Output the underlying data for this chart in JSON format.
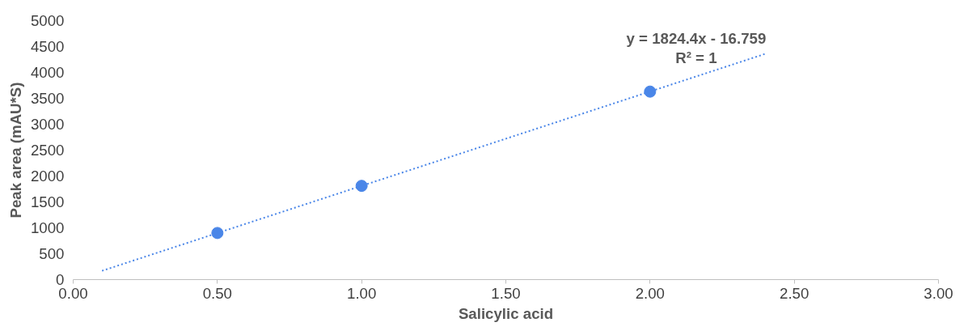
{
  "chart_data": {
    "type": "scatter",
    "xlabel": "Salicylic acid",
    "ylabel": "Peak area (mAU*S)",
    "annotations": [
      "y = 1824.4x - 16.759",
      "R² = 1"
    ],
    "xlim": [
      0,
      3
    ],
    "xticks": [
      {
        "value": 0,
        "label": "0.00"
      },
      {
        "value": 0.5,
        "label": "0.50"
      },
      {
        "value": 1,
        "label": "1.00"
      },
      {
        "value": 1.5,
        "label": "1.50"
      },
      {
        "value": 2,
        "label": "2.00"
      },
      {
        "value": 2.5,
        "label": "2.50"
      },
      {
        "value": 3,
        "label": "3.00"
      }
    ],
    "ylim": [
      0,
      5000
    ],
    "yticks": [
      0,
      500,
      1000,
      1500,
      2000,
      2500,
      3000,
      3500,
      4000,
      4500,
      5000
    ],
    "series": [
      {
        "x": [
          0.5,
          1,
          2
        ],
        "values": [
          900,
          1810,
          3630
        ],
        "color": "#4a86e8",
        "marker": "circle"
      },
      {
        "type": "line",
        "x": [
          0.1,
          2.4
        ],
        "values": [
          170,
          4360
        ],
        "color": "#4a86e8",
        "line_style": "dotted"
      }
    ]
  }
}
